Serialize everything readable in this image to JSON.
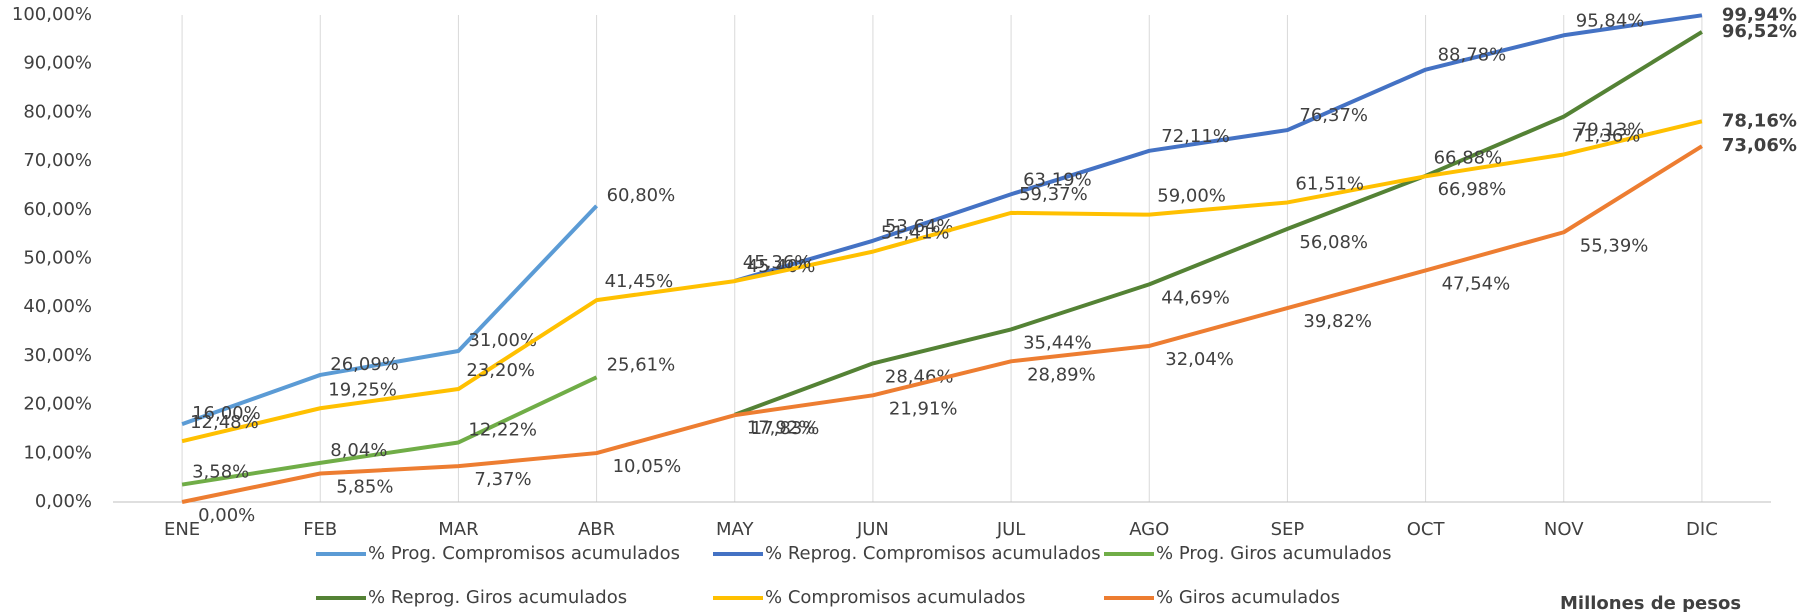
{
  "chart_data": {
    "type": "line",
    "categories": [
      "ENE",
      "FEB",
      "MAR",
      "ABR",
      "MAY",
      "JUN",
      "JUL",
      "AGO",
      "SEP",
      "OCT",
      "NOV",
      "DIC"
    ],
    "ylim": [
      0,
      100
    ],
    "yticks": [
      {
        "value": 0,
        "label": "0,00%"
      },
      {
        "value": 10,
        "label": "10,00%"
      },
      {
        "value": 20,
        "label": "20,00%"
      },
      {
        "value": 30,
        "label": "30,00%"
      },
      {
        "value": 40,
        "label": "40,00%"
      },
      {
        "value": 50,
        "label": "50,00%"
      },
      {
        "value": 60,
        "label": "60,00%"
      },
      {
        "value": 70,
        "label": "70,00%"
      },
      {
        "value": 80,
        "label": "80,00%"
      },
      {
        "value": 90,
        "label": "90,00%"
      },
      {
        "value": 100,
        "label": "100,00%"
      }
    ],
    "note": "Millones de pesos",
    "series": [
      {
        "name": "% Prog. Compromisos acumulados",
        "color": "#5b9bd5",
        "values": [
          16.0,
          26.09,
          31.0,
          60.8,
          null,
          null,
          null,
          null,
          null,
          null,
          null,
          null
        ],
        "value_labels": [
          "16,00%",
          "26,09%",
          "31,00%",
          "60,80%",
          null,
          null,
          null,
          null,
          null,
          null,
          null,
          null
        ]
      },
      {
        "name": "% Reprog. Compromisos acumulados",
        "color": "#4472c4",
        "values": [
          null,
          null,
          null,
          null,
          45.4,
          53.64,
          63.19,
          72.11,
          76.37,
          88.78,
          95.84,
          99.94
        ],
        "value_labels": [
          null,
          null,
          null,
          null,
          "45,40%",
          "53,64%",
          "63,19%",
          "72,11%",
          "76,37%",
          "88,78%",
          "95,84%",
          "99,94%"
        ]
      },
      {
        "name": "% Prog. Giros acumulados",
        "color": "#70ad47",
        "values": [
          3.58,
          8.04,
          12.22,
          25.61,
          null,
          null,
          null,
          null,
          null,
          null,
          null,
          null
        ],
        "value_labels": [
          "3,58%",
          "8,04%",
          "12,22%",
          "25,61%",
          null,
          null,
          null,
          null,
          null,
          null,
          null,
          null
        ]
      },
      {
        "name": "% Reprog. Giros acumulados",
        "color": "#548235",
        "values": [
          null,
          null,
          null,
          null,
          17.92,
          28.46,
          35.44,
          44.69,
          56.08,
          66.98,
          79.13,
          96.52
        ],
        "value_labels": [
          null,
          null,
          null,
          null,
          "17,92%",
          "28,46%",
          "35,44%",
          "44,69%",
          "56,08%",
          "66,98%",
          "79,13%",
          "96,52%"
        ]
      },
      {
        "name": "% Compromisos acumulados",
        "color": "#ffc000",
        "values": [
          12.48,
          19.25,
          23.2,
          41.45,
          45.36,
          51.41,
          59.37,
          59.0,
          61.51,
          66.88,
          71.36,
          78.16
        ],
        "value_labels": [
          "12,48%",
          "19,25%",
          "23,20%",
          "41,45%",
          "45,36%",
          "51,41%",
          "59,37%",
          "59,00%",
          "61,51%",
          "66,88%",
          "71,36%",
          "78,16%"
        ]
      },
      {
        "name": "% Giros acumulados",
        "color": "#ed7d31",
        "values": [
          0.0,
          5.85,
          7.37,
          10.05,
          17.83,
          21.91,
          28.89,
          32.04,
          39.82,
          47.54,
          55.39,
          73.06
        ],
        "value_labels": [
          "0,00%",
          "5,85%",
          "7,37%",
          "10,05%",
          "17,83%",
          "21,91%",
          "28,89%",
          "32,04%",
          "39,82%",
          "47,54%",
          "55,39%",
          "73,06%"
        ]
      }
    ]
  }
}
